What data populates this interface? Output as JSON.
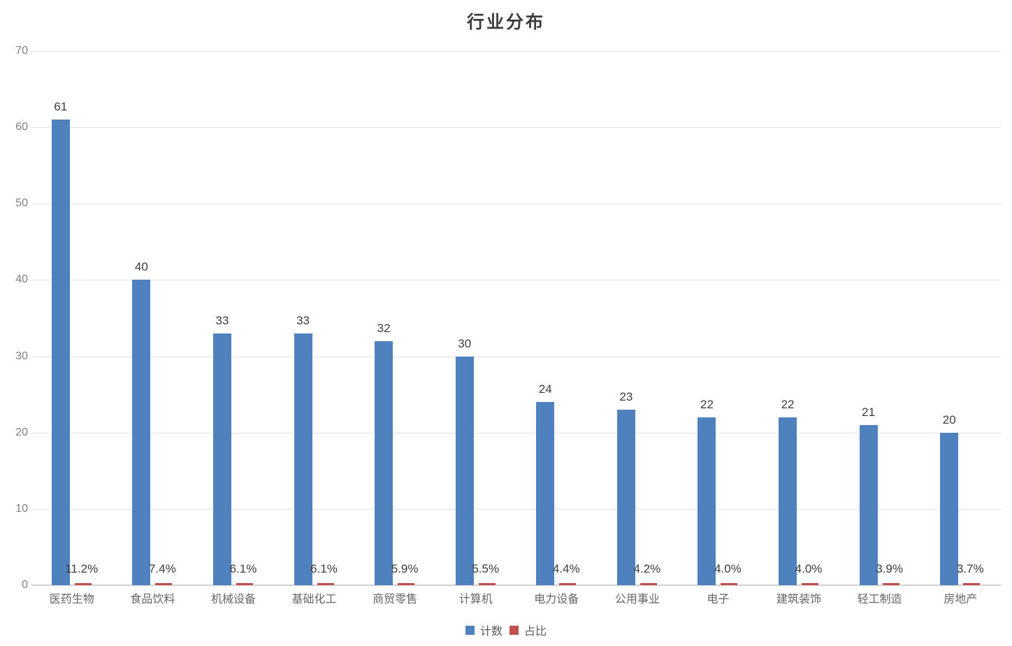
{
  "title": "行业分布",
  "legend": {
    "position": "bottom",
    "items": [
      {
        "id": "count",
        "label": "计数",
        "color": "#4e81bd"
      },
      {
        "id": "share",
        "label": "占比",
        "color": "#c0504d"
      }
    ]
  },
  "chart_data": {
    "type": "bar",
    "title": "行业分布",
    "categories": [
      "医药生物",
      "食品饮料",
      "机械设备",
      "基础化工",
      "商贸零售",
      "计算机",
      "电力设备",
      "公用事业",
      "电子",
      "建筑装饰",
      "轻工制造",
      "房地产"
    ],
    "series": [
      {
        "name": "计数",
        "color": "#4e81bd",
        "values": [
          61,
          40,
          33,
          33,
          32,
          30,
          24,
          23,
          22,
          22,
          21,
          20
        ],
        "value_labels": [
          "61",
          "40",
          "33",
          "33",
          "32",
          "30",
          "24",
          "23",
          "22",
          "22",
          "21",
          "20"
        ]
      },
      {
        "name": "占比",
        "color": "#c0504d",
        "values": [
          0.112,
          0.074,
          0.061,
          0.061,
          0.059,
          0.055,
          0.044,
          0.042,
          0.04,
          0.04,
          0.039,
          0.037
        ],
        "value_labels": [
          "11.2%",
          "7.4%",
          "6.1%",
          "6.1%",
          "5.9%",
          "5.5%",
          "4.4%",
          "4.2%",
          "4.0%",
          "4.0%",
          "3.9%",
          "3.7%"
        ]
      }
    ],
    "ylim": [
      0,
      70
    ],
    "yticks": [
      0,
      10,
      20,
      30,
      40,
      50,
      60,
      70
    ],
    "grid": true,
    "legend_position": "bottom",
    "colors": {
      "count_bar": "#4e81bd",
      "share_bar": "#c0504d",
      "gridline": "#e3e3e3",
      "axis_line": "#d2d2d2",
      "tick_text": "#7f7f7f",
      "value_text": "#3c3c3c",
      "category_text": "#666666",
      "title_text": "#3d3d3d"
    }
  }
}
